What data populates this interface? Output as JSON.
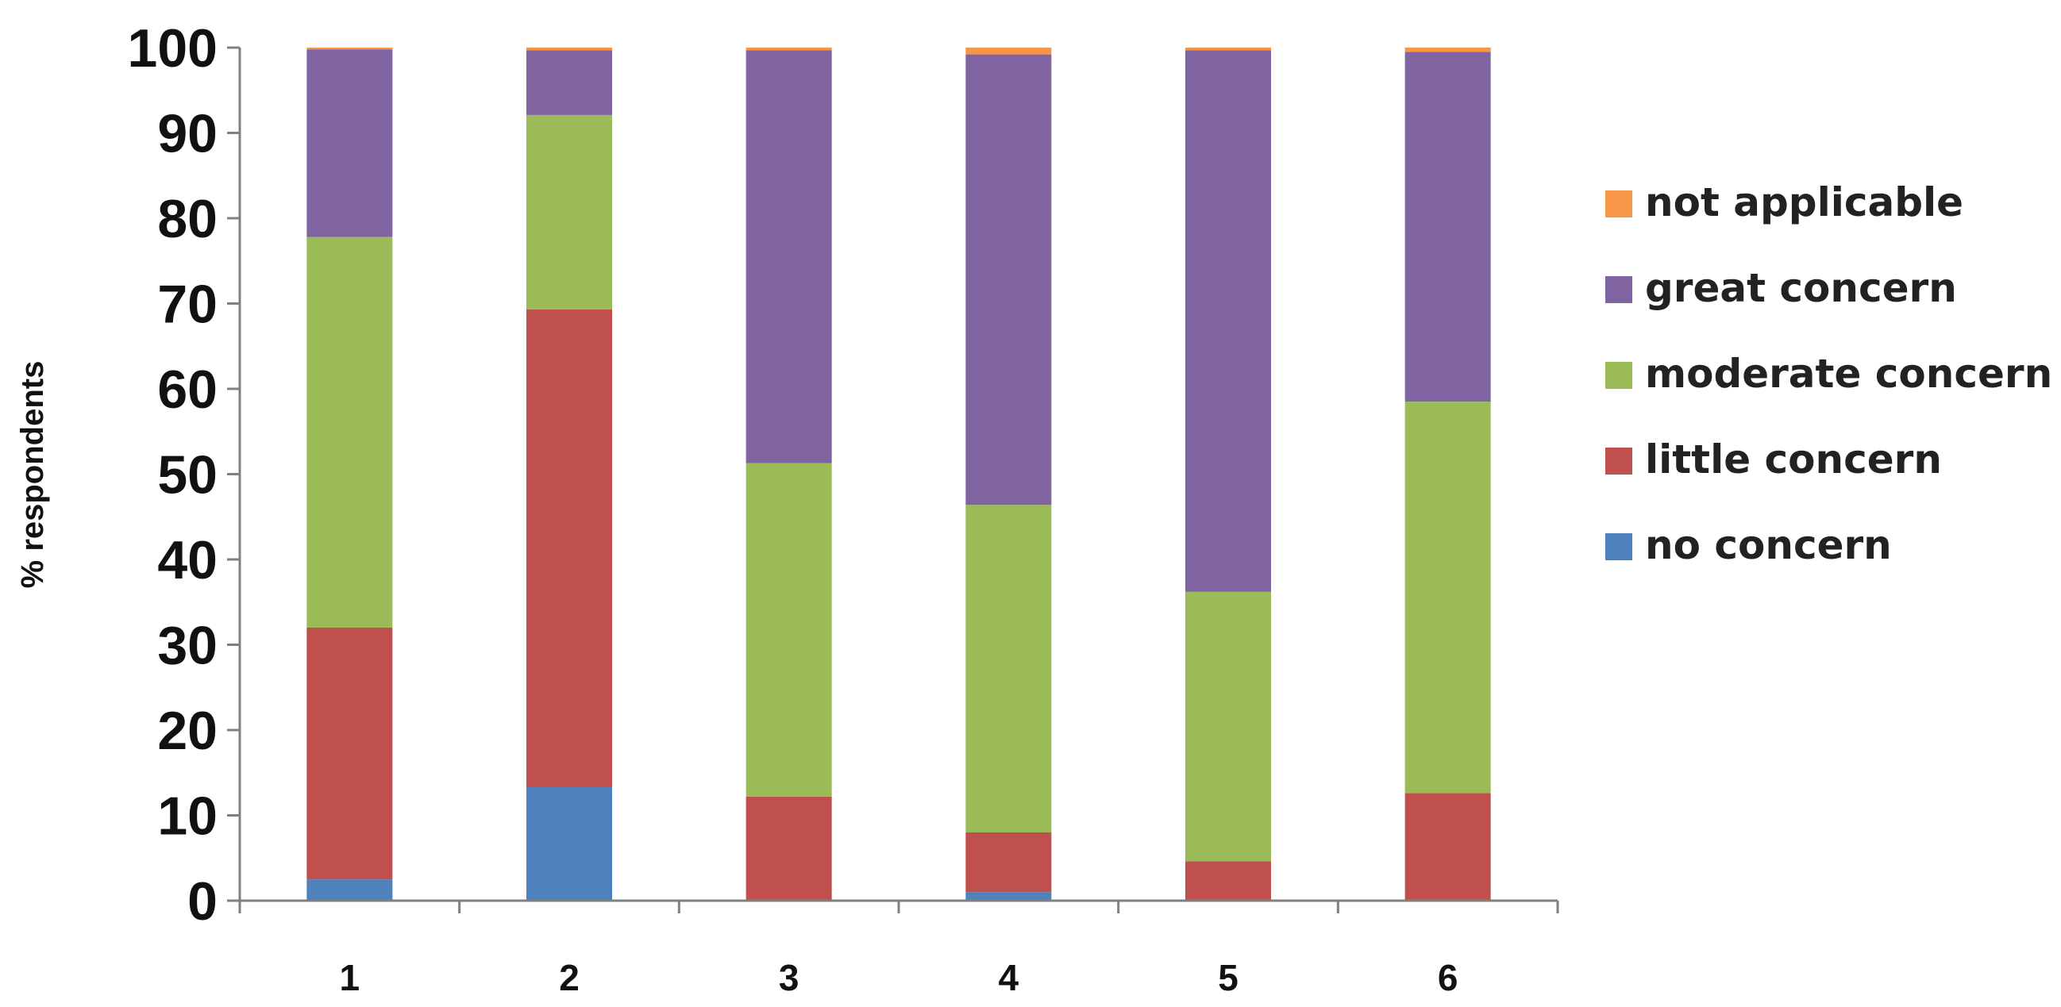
{
  "chart_data": {
    "type": "bar",
    "stacked": true,
    "title": "",
    "xlabel": "",
    "ylabel": "% respondents",
    "ylim": [
      0,
      100
    ],
    "yticks": [
      0,
      10,
      20,
      30,
      40,
      50,
      60,
      70,
      80,
      90,
      100
    ],
    "categories": [
      "1",
      "2",
      "3",
      "4",
      "5",
      "6"
    ],
    "grid": false,
    "legend_position": "right",
    "series": [
      {
        "name": "no concern",
        "color": "#4F81BD",
        "values": [
          2.5,
          13.3,
          0.0,
          1.0,
          0.0,
          0.0
        ]
      },
      {
        "name": "little concern",
        "color": "#C0504D",
        "values": [
          29.5,
          56.0,
          12.2,
          7.0,
          4.6,
          12.6
        ]
      },
      {
        "name": "moderate concern",
        "color": "#9BBB59",
        "values": [
          45.8,
          22.8,
          39.1,
          38.4,
          31.6,
          45.9
        ]
      },
      {
        "name": "great concern",
        "color": "#8064A2",
        "values": [
          22.0,
          7.6,
          48.4,
          52.8,
          63.5,
          41.0
        ]
      },
      {
        "name": "not applicable",
        "color": "#F79646",
        "values": [
          0.2,
          0.3,
          0.3,
          0.8,
          0.3,
          0.5
        ]
      }
    ],
    "legend_order": [
      "not applicable",
      "great concern",
      "moderate concern",
      "little concern",
      "no concern"
    ]
  }
}
